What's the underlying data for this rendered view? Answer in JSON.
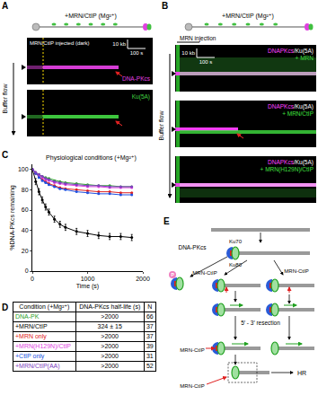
{
  "panel_a": {
    "letter": "A",
    "reaction": "+MRN/CtIP (Mg²⁺)",
    "injection": "MRN/CtIP injected (dark)",
    "channels": [
      {
        "text": "DNA-PKcs",
        "color": "#e040e0"
      },
      {
        "text": "Ku(5A)",
        "color": "#40d040"
      }
    ],
    "scale_length": "10 kb",
    "scale_time": "100 s",
    "flow": "Buffer flow"
  },
  "panel_b": {
    "letter": "B",
    "reaction": "+MRN/CtIP (Mg²⁺)",
    "injection": "MRN injection",
    "scale_length": "10 kb",
    "scale_time": "100 s",
    "flow": "Buffer flow",
    "kymographs": [
      {
        "lines": [
          [
            {
              "text": "DNAPKcs",
              "color": "#ff40ff"
            },
            {
              "text": "/Ku(5A)",
              "color": "#ffffff"
            }
          ],
          [
            {
              "text": "+ MRN",
              "color": "#40e040"
            }
          ]
        ]
      },
      {
        "lines": [
          [
            {
              "text": "DNAPKcs",
              "color": "#ff40ff"
            },
            {
              "text": "/Ku(5A)",
              "color": "#ffffff"
            }
          ],
          [
            {
              "text": "+ MRN/CtIP",
              "color": "#40e040"
            }
          ]
        ]
      },
      {
        "lines": [
          [
            {
              "text": "DNAPKcs",
              "color": "#ff40ff"
            },
            {
              "text": "/Ku(5A)",
              "color": "#ffffff"
            }
          ],
          [
            {
              "text": "+ MRN(H129N)/CtIP",
              "color": "#40e040"
            }
          ]
        ]
      }
    ]
  },
  "panel_c": {
    "letter": "C"
  },
  "chart_data": {
    "type": "line",
    "title": "Physiological conditions (+Mg²⁺)",
    "x_label": "Time (s)",
    "y_label": "%DNA-PKcs remaining",
    "x": [
      0,
      60,
      120,
      180,
      240,
      300,
      400,
      500,
      600,
      800,
      1000,
      1200,
      1400,
      1600,
      1800
    ],
    "series": [
      {
        "name": "DNA-PK",
        "color": "#2ca02c",
        "values": [
          100,
          97,
          95,
          93,
          92,
          91,
          89,
          88,
          87,
          86,
          85,
          84,
          84,
          83,
          83
        ]
      },
      {
        "name": "+MRN/CtIP",
        "color": "#000000",
        "values": [
          100,
          88,
          78,
          70,
          63,
          58,
          51,
          46,
          43,
          39,
          37,
          35,
          34,
          34,
          33
        ],
        "errors": [
          0,
          3,
          3,
          3,
          3,
          3,
          3,
          3,
          3,
          3,
          3,
          3,
          3,
          3,
          3
        ]
      },
      {
        "name": "+MRN only",
        "color": "#e02020",
        "values": [
          100,
          96,
          93,
          90,
          88,
          86,
          84,
          82,
          81,
          80,
          79,
          78,
          78,
          77,
          77
        ]
      },
      {
        "name": "+MRN(H129N)/CtIP",
        "color": "#e040e0",
        "values": [
          100,
          97,
          94,
          92,
          90,
          89,
          87,
          86,
          85,
          84,
          83,
          83,
          82,
          82,
          82
        ]
      },
      {
        "name": "+CtIP only",
        "color": "#2050e0",
        "values": [
          100,
          96,
          92,
          89,
          87,
          85,
          83,
          81,
          80,
          78,
          77,
          76,
          76,
          75,
          75
        ]
      },
      {
        "name": "+MRN/CtIP(AA)",
        "color": "#8040c0",
        "values": [
          100,
          97,
          95,
          93,
          91,
          90,
          88,
          87,
          86,
          85,
          84,
          84,
          83,
          83,
          83
        ]
      }
    ],
    "xlim": [
      0,
      2000
    ],
    "xticks": [
      0,
      1000,
      2000
    ],
    "ylim": [
      0,
      105
    ],
    "yticks": [
      0,
      20,
      40,
      60,
      80,
      100
    ],
    "grid": false,
    "marker": "circle"
  },
  "table": {
    "letter": "D",
    "header": [
      "Condition (+Mg²⁺)",
      "DNA-PKcs half-life (s)",
      "N"
    ],
    "rows": [
      [
        {
          "text": "DNA-PK",
          "color": "#2ca02c"
        },
        ">2000",
        66
      ],
      [
        {
          "text": "+MRN/CtIP",
          "color": "#000000"
        },
        "324 ± 15",
        37
      ],
      [
        {
          "text": "+MRN only",
          "color": "#e02020"
        },
        ">2000",
        37
      ],
      [
        {
          "text": "+MRN(H129N)/CtIP",
          "color": "#e040e0"
        },
        ">2000",
        39
      ],
      [
        {
          "text": "+CtIP only",
          "color": "#2050e0"
        },
        ">2000",
        31
      ],
      [
        {
          "text": "+MRN/CtIP(AA)",
          "color": "#8040c0"
        },
        ">2000",
        52
      ]
    ]
  },
  "diagram": {
    "letter": "E",
    "dnapkcs": "DNA-PKcs",
    "ku70": "Ku70",
    "ku80": "Ku80",
    "phospho": "P",
    "mrn_ctip": "MRN-CtIP",
    "resection": "5′ - 3′ resection",
    "hr": "HR"
  }
}
